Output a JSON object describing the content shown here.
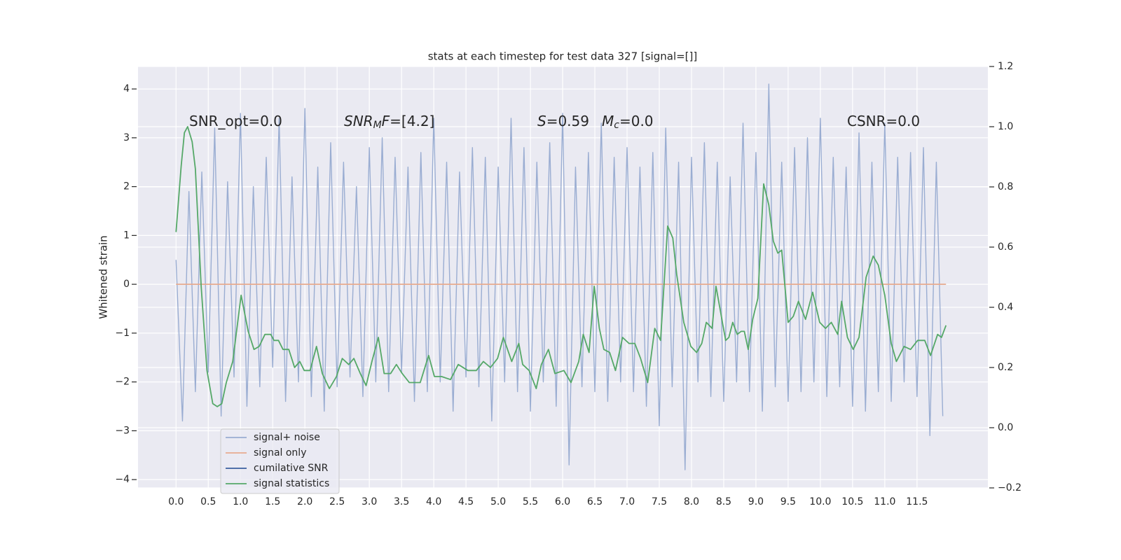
{
  "chart_data": {
    "type": "line",
    "title": "stats at each timestep for test data 327 [signal=[]]",
    "ylabel": "Whitened strain",
    "xlim": [
      -0.59,
      12.6
    ],
    "ylim": [
      -4.17,
      4.46
    ],
    "y2lim": [
      -0.2,
      1.2
    ],
    "grid": true,
    "legend": "lower left",
    "xticks": [
      {
        "value": 0,
        "label": "0.0"
      },
      0.5,
      {
        "value": 1,
        "label": "1.0"
      },
      1.5,
      {
        "value": 2,
        "label": "2.0"
      },
      2.5,
      {
        "value": 3,
        "label": "3.0"
      },
      3.5,
      {
        "value": 4,
        "label": "4.0"
      },
      4.5,
      {
        "value": 5,
        "label": "5.0"
      },
      5.5,
      {
        "value": 6,
        "label": "6.0"
      },
      6.5,
      {
        "value": 7,
        "label": "7.0"
      },
      7.5,
      {
        "value": 8,
        "label": "8.0"
      },
      8.5,
      {
        "value": 9,
        "label": "9.0"
      },
      9.5,
      {
        "value": 10,
        "label": "10.0"
      },
      10.5,
      {
        "value": 11,
        "label": "11.0"
      },
      11.5
    ],
    "yticks": [
      {
        "value": -4,
        "label": "−4"
      },
      {
        "value": -3,
        "label": "−3"
      },
      {
        "value": -2,
        "label": "−2"
      },
      {
        "value": -1,
        "label": "−1"
      },
      0,
      1,
      2,
      3,
      4
    ],
    "y2ticks": [
      {
        "value": -0.2,
        "label": "−0.2"
      },
      {
        "value": 0,
        "label": "0.0"
      },
      0.2,
      0.4,
      0.6,
      0.8,
      {
        "value": 1,
        "label": "1.0"
      },
      1.2
    ],
    "annotations": [
      [
        "SNR_opt=0.0"
      ],
      [
        "SNR",
        "M",
        "F",
        "=[4.2]"
      ],
      [
        "S",
        "=0.59"
      ],
      [
        "M",
        "c",
        "=0.0"
      ],
      [
        "CSNR=0.0"
      ]
    ],
    "series": [
      {
        "name": "signal+ noise",
        "color": "#9aadd2",
        "x": [
          0,
          0.1,
          0.2,
          0.3,
          0.4,
          0.5,
          0.6,
          0.7,
          0.8,
          0.9,
          1,
          1.1,
          1.2,
          1.3,
          1.4,
          1.5,
          1.6,
          1.7,
          1.8,
          1.9,
          2,
          2.1,
          2.2,
          2.3,
          2.4,
          2.5,
          2.6,
          2.7,
          2.8,
          2.9,
          3,
          3.1,
          3.2,
          3.3,
          3.4,
          3.5,
          3.6,
          3.7,
          3.8,
          3.9,
          4,
          4.1,
          4.2,
          4.3,
          4.4,
          4.5,
          4.6,
          4.7,
          4.8,
          4.9,
          5,
          5.1,
          5.2,
          5.3,
          5.4,
          5.5,
          5.6,
          5.7,
          5.8,
          5.9,
          6,
          6.1,
          6.2,
          6.3,
          6.4,
          6.5,
          6.6,
          6.7,
          6.8,
          6.9,
          7,
          7.1,
          7.2,
          7.3,
          7.4,
          7.5,
          7.6,
          7.7,
          7.8,
          7.9,
          8,
          8.1,
          8.2,
          8.3,
          8.4,
          8.5,
          8.6,
          8.7,
          8.8,
          8.9,
          9,
          9.1,
          9.2,
          9.3,
          9.4,
          9.5,
          9.6,
          9.7,
          9.8,
          9.9,
          10,
          10.1,
          10.2,
          10.3,
          10.4,
          10.5,
          10.6,
          10.7,
          10.8,
          10.9,
          11,
          11.1,
          11.2,
          11.3,
          11.4,
          11.5,
          11.6,
          11.7,
          11.8,
          11.9
        ],
        "values": [
          0.5,
          -2.8,
          1.9,
          -2.2,
          2.3,
          -1.8,
          3.2,
          -2.7,
          2.1,
          -1.9,
          3.5,
          -2.5,
          2.0,
          -2.1,
          2.6,
          -1.7,
          3.4,
          -2.4,
          2.2,
          -2.0,
          3.6,
          -2.3,
          2.4,
          -2.6,
          2.9,
          -2.1,
          2.5,
          -1.9,
          2.0,
          -2.3,
          2.8,
          -2.0,
          3.0,
          -2.2,
          2.6,
          -1.8,
          2.4,
          -2.4,
          2.7,
          -2.2,
          3.4,
          -2.0,
          2.5,
          -2.6,
          2.3,
          -1.9,
          2.8,
          -2.1,
          2.6,
          -2.8,
          2.4,
          -2.0,
          3.4,
          -2.2,
          2.8,
          -2.6,
          2.5,
          -2.0,
          2.9,
          -2.5,
          3.5,
          -3.7,
          2.4,
          -2.1,
          2.7,
          -2.2,
          3.3,
          -2.4,
          2.6,
          -2.0,
          2.8,
          -2.2,
          2.4,
          -2.5,
          2.7,
          -2.9,
          3.2,
          -2.1,
          2.5,
          -3.8,
          2.6,
          -2.0,
          2.9,
          -2.3,
          2.5,
          -2.4,
          2.2,
          -2.0,
          3.3,
          -2.2,
          2.7,
          -2.6,
          4.1,
          -2.1,
          2.5,
          -2.4,
          2.8,
          -2.2,
          3.0,
          -2.0,
          3.4,
          -2.3,
          2.6,
          -2.1,
          2.4,
          -2.5,
          3.1,
          -2.6,
          2.5,
          -2.2,
          3.3,
          -2.4,
          2.6,
          -2.0,
          2.7,
          -2.3,
          2.8,
          -3.1,
          2.5,
          -2.7
        ]
      },
      {
        "name": "signal only",
        "color": "#e8ab8f",
        "x": [
          0,
          11.95
        ],
        "values": [
          0,
          0
        ]
      },
      {
        "name": "cumilative SNR",
        "color": "#3a5fa0"
      },
      {
        "name": "signal statistics",
        "color": "#55a868",
        "axis": "y2",
        "x": [
          0,
          0.08,
          0.13,
          0.18,
          0.25,
          0.3,
          0.39,
          0.48,
          0.57,
          0.64,
          0.71,
          0.78,
          0.88,
          1.01,
          1.12,
          1.21,
          1.29,
          1.38,
          1.47,
          1.52,
          1.59,
          1.66,
          1.75,
          1.84,
          1.92,
          1.99,
          2.08,
          2.18,
          2.27,
          2.38,
          2.49,
          2.58,
          2.68,
          2.76,
          2.86,
          2.95,
          3.04,
          3.14,
          3.23,
          3.33,
          3.42,
          3.51,
          3.62,
          3.79,
          3.92,
          4.01,
          4.12,
          4.26,
          4.38,
          4.53,
          4.66,
          4.77,
          4.88,
          4.99,
          5.08,
          5.21,
          5.32,
          5.38,
          5.48,
          5.59,
          5.67,
          5.78,
          5.88,
          6.02,
          6.13,
          6.25,
          6.32,
          6.41,
          6.49,
          6.57,
          6.64,
          6.73,
          6.82,
          6.93,
          7.03,
          7.12,
          7.21,
          7.32,
          7.43,
          7.52,
          7.63,
          7.71,
          7.77,
          7.88,
          7.99,
          8.08,
          8.16,
          8.23,
          8.32,
          8.38,
          8.53,
          8.58,
          8.64,
          8.71,
          8.77,
          8.82,
          8.88,
          8.95,
          9.03,
          9.12,
          9.2,
          9.27,
          9.34,
          9.4,
          9.5,
          9.58,
          9.66,
          9.77,
          9.88,
          9.99,
          10.08,
          10.17,
          10.27,
          10.33,
          10.42,
          10.51,
          10.6,
          10.71,
          10.82,
          10.9,
          11.0,
          11.1,
          11.18,
          11.3,
          11.4,
          11.51,
          11.62,
          11.71,
          11.82,
          11.88,
          11.95
        ],
        "values": [
          0.65,
          0.87,
          0.98,
          1.0,
          0.95,
          0.86,
          0.47,
          0.19,
          0.08,
          0.07,
          0.08,
          0.15,
          0.22,
          0.44,
          0.32,
          0.26,
          0.27,
          0.31,
          0.31,
          0.29,
          0.29,
          0.26,
          0.26,
          0.2,
          0.22,
          0.19,
          0.19,
          0.27,
          0.18,
          0.13,
          0.17,
          0.23,
          0.21,
          0.23,
          0.18,
          0.14,
          0.22,
          0.3,
          0.18,
          0.18,
          0.21,
          0.18,
          0.15,
          0.15,
          0.24,
          0.17,
          0.17,
          0.16,
          0.21,
          0.19,
          0.19,
          0.22,
          0.2,
          0.23,
          0.3,
          0.22,
          0.28,
          0.21,
          0.19,
          0.13,
          0.21,
          0.26,
          0.18,
          0.19,
          0.15,
          0.22,
          0.31,
          0.25,
          0.47,
          0.33,
          0.26,
          0.25,
          0.19,
          0.3,
          0.28,
          0.28,
          0.23,
          0.15,
          0.33,
          0.29,
          0.67,
          0.63,
          0.51,
          0.35,
          0.27,
          0.25,
          0.28,
          0.35,
          0.33,
          0.47,
          0.29,
          0.3,
          0.35,
          0.31,
          0.32,
          0.32,
          0.26,
          0.36,
          0.43,
          0.81,
          0.74,
          0.62,
          0.58,
          0.59,
          0.35,
          0.37,
          0.42,
          0.36,
          0.45,
          0.35,
          0.33,
          0.35,
          0.31,
          0.42,
          0.3,
          0.26,
          0.3,
          0.5,
          0.57,
          0.54,
          0.44,
          0.28,
          0.22,
          0.27,
          0.26,
          0.29,
          0.29,
          0.24,
          0.31,
          0.3,
          0.34
        ]
      }
    ]
  }
}
